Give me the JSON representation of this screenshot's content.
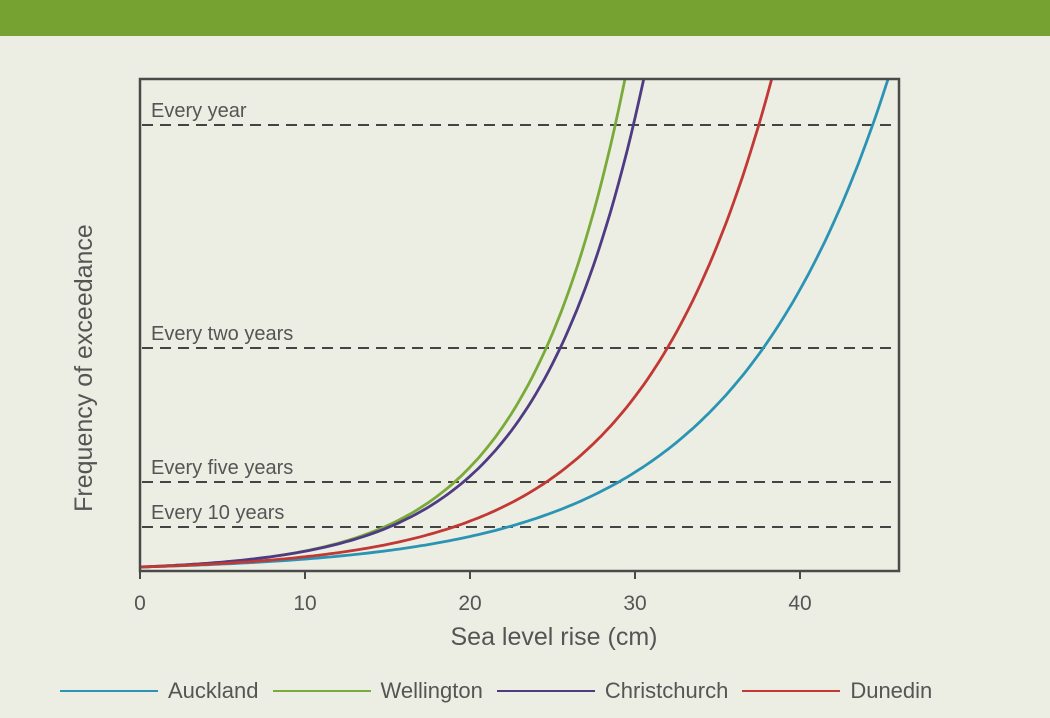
{
  "chart_data": {
    "type": "line",
    "title": "",
    "xlabel": "Sea level rise (cm)",
    "ylabel": "Frequency of exceedance",
    "xlim": [
      0,
      46
    ],
    "xticks": [
      0,
      10,
      20,
      30,
      40
    ],
    "y_scale": "categorical frequency (no numeric tick labels)",
    "grid": false,
    "legend_position": "bottom",
    "reference_lines": [
      {
        "label": "Every year",
        "style": "dashed"
      },
      {
        "label": "Every two years",
        "style": "dashed"
      },
      {
        "label": "Every five years",
        "style": "dashed"
      },
      {
        "label": "Every 10 years",
        "style": "dashed"
      }
    ],
    "series": [
      {
        "name": "Auckland",
        "color": "#2b94b5",
        "x": [
          0,
          10,
          22.3,
          29.2,
          37.7,
          45.3
        ],
        "y": [
          "baseline",
          "near baseline",
          "Every 10 years",
          "Every five years",
          "Every two years",
          "above Every year"
        ],
        "crossings": {
          "Every 10 years": 22.3,
          "Every five years": 29.2,
          "Every two years": 37.7,
          "Every year": 44.4
        }
      },
      {
        "name": "Wellington",
        "color": "#79aa3a",
        "x": [
          0,
          10,
          14.8,
          19.0,
          24.5,
          29.3
        ],
        "y": [
          "baseline",
          "near baseline",
          "Every 10 years",
          "Every five years",
          "Every two years",
          "above Every year"
        ],
        "crossings": {
          "Every 10 years": 14.8,
          "Every five years": 19.0,
          "Every two years": 24.5,
          "Every year": 28.8
        }
      },
      {
        "name": "Christchurch",
        "color": "#4e3b84",
        "x": [
          0,
          10,
          15.1,
          19.6,
          25.6,
          30.5
        ],
        "y": [
          "baseline",
          "near baseline",
          "Every 10 years",
          "Every five years",
          "Every two years",
          "above Every year"
        ],
        "crossings": {
          "Every 10 years": 15.1,
          "Every five years": 19.6,
          "Every two years": 25.6,
          "Every year": 29.9
        }
      },
      {
        "name": "Dunedin",
        "color": "#c13835",
        "x": [
          0,
          10,
          19.0,
          24.5,
          32.0,
          38.2
        ],
        "y": [
          "baseline",
          "near baseline",
          "Every 10 years",
          "Every five years",
          "Every two years",
          "above Every year"
        ],
        "crossings": {
          "Every 10 years": 19.0,
          "Every five years": 24.5,
          "Every two years": 32.0,
          "Every year": 37.5
        }
      }
    ]
  }
}
